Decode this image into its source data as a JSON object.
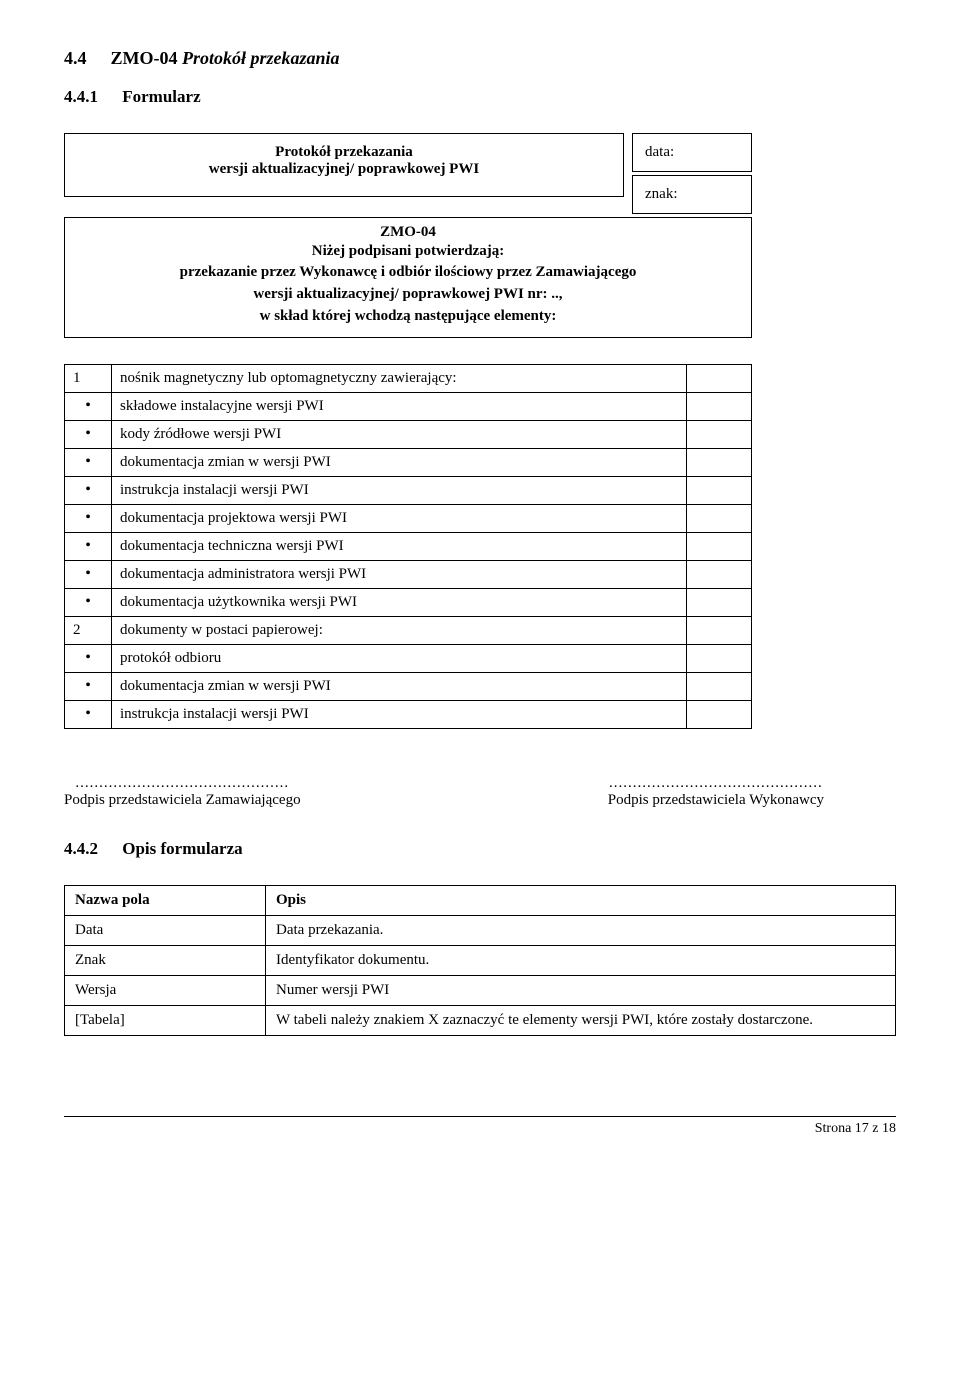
{
  "section": {
    "number": "4.4",
    "prefix": "ZMO-04",
    "title": "Protokół przekazania"
  },
  "sub1": {
    "number": "4.4.1",
    "title": "Formularz"
  },
  "formHeader": {
    "line1": "Protokół przekazania",
    "line2": "wersji aktualizacyjnej/ poprawkowej PWI",
    "right1": "data:",
    "right2": "znak:"
  },
  "formBody": {
    "zmo": "ZMO-04",
    "confirm": "Niżej podpisani potwierdzają:",
    "para1": "przekazanie przez Wykonawcę i odbiór ilościowy przez Zamawiającego",
    "para2": "wersji aktualizacyjnej/ poprawkowej PWI nr: ..,",
    "para3": "w skład której wchodzą następujące elementy:"
  },
  "items": [
    {
      "n": "1",
      "t": "nośnik magnetyczny lub optomagnetyczny zawierający:"
    },
    {
      "n": "•",
      "t": "składowe instalacyjne wersji PWI"
    },
    {
      "n": "•",
      "t": "kody źródłowe wersji PWI"
    },
    {
      "n": "•",
      "t": "dokumentacja zmian w wersji PWI"
    },
    {
      "n": "•",
      "t": "instrukcja instalacji wersji PWI"
    },
    {
      "n": "•",
      "t": "dokumentacja projektowa wersji PWI"
    },
    {
      "n": "•",
      "t": "dokumentacja techniczna wersji PWI"
    },
    {
      "n": "•",
      "t": "dokumentacja administratora wersji PWI"
    },
    {
      "n": "•",
      "t": "dokumentacja użytkownika wersji PWI"
    },
    {
      "n": "2",
      "t": "dokumenty w postaci papierowej:"
    },
    {
      "n": "•",
      "t": "protokół odbioru"
    },
    {
      "n": "•",
      "t": "dokumentacja zmian w wersji PWI"
    },
    {
      "n": "•",
      "t": "instrukcja instalacji wersji PWI"
    }
  ],
  "sig": {
    "dots": ".............................................",
    "left": "Podpis przedstawiciela Zamawiającego",
    "right": "Podpis przedstawiciela Wykonawcy"
  },
  "sub2": {
    "number": "4.4.2",
    "title": "Opis formularza"
  },
  "desc": {
    "h1": "Nazwa pola",
    "h2": "Opis",
    "rows": [
      {
        "a": "Data",
        "b": "Data przekazania."
      },
      {
        "a": "Znak",
        "b": "Identyfikator dokumentu."
      },
      {
        "a": "Wersja",
        "b": "Numer wersji PWI"
      },
      {
        "a": "[Tabela]",
        "b": "W tabeli należy znakiem X zaznaczyć te elementy wersji PWI, które zostały dostarczone."
      }
    ]
  },
  "footer": "Strona 17 z 18"
}
